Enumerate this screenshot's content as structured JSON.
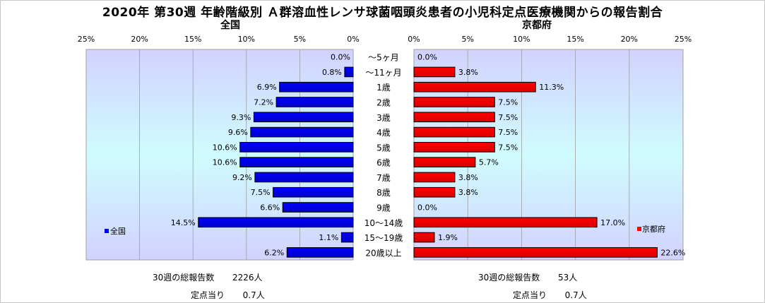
{
  "page": {
    "title": "2020年 第30週 年齢階級別 Ａ群溶血性レンサ球菌咽頭炎患者の小児科定点医療機関からの報告割合"
  },
  "chart_data": [
    {
      "type": "bar",
      "orientation": "horizontal",
      "direction": "right-to-left",
      "title": "全国",
      "legend": "全国",
      "legend_position": "left",
      "color": "#0000ff",
      "xlim": [
        0,
        25
      ],
      "xticks": [
        "25%",
        "20%",
        "15%",
        "10%",
        "5%",
        "0%"
      ],
      "categories": [
        "～5ヶ月",
        "～11ヶ月",
        "1歳",
        "2歳",
        "3歳",
        "4歳",
        "5歳",
        "6歳",
        "7歳",
        "8歳",
        "9歳",
        "10～14歳",
        "15～19歳",
        "20歳以上"
      ],
      "values": [
        0.0,
        0.8,
        6.9,
        7.2,
        9.3,
        9.6,
        10.6,
        10.6,
        9.2,
        7.5,
        6.6,
        14.5,
        1.1,
        6.2
      ],
      "data_labels": [
        "0.0%",
        "0.8%",
        "6.9%",
        "7.2%",
        "9.3%",
        "9.6%",
        "10.6%",
        "10.6%",
        "9.2%",
        "7.5%",
        "6.6%",
        "14.5%",
        "1.1%",
        "6.2%"
      ],
      "grid": true
    },
    {
      "type": "bar",
      "orientation": "horizontal",
      "direction": "left-to-right",
      "title": "京都府",
      "legend": "京都府",
      "legend_position": "right",
      "color": "#ff0000",
      "xlim": [
        0,
        25
      ],
      "xticks": [
        "0%",
        "5%",
        "10%",
        "15%",
        "20%",
        "25%"
      ],
      "categories": [
        "～5ヶ月",
        "～11ヶ月",
        "1歳",
        "2歳",
        "3歳",
        "4歳",
        "5歳",
        "6歳",
        "7歳",
        "8歳",
        "9歳",
        "10～14歳",
        "15～19歳",
        "20歳以上"
      ],
      "values": [
        0.0,
        3.8,
        11.3,
        7.5,
        7.5,
        7.5,
        7.5,
        5.7,
        3.8,
        3.8,
        0.0,
        17.0,
        1.9,
        22.6
      ],
      "data_labels": [
        "0.0%",
        "3.8%",
        "11.3%",
        "7.5%",
        "7.5%",
        "7.5%",
        "7.5%",
        "5.7%",
        "3.8%",
        "3.8%",
        "0.0%",
        "17.0%",
        "1.9%",
        "22.6%"
      ],
      "grid": true
    }
  ],
  "footer": {
    "left": {
      "total_label": "30週の総報告数",
      "total_value": "2226人",
      "per_label": "定点当り",
      "per_value": "0.7人"
    },
    "right": {
      "total_label": "30週の総報告数",
      "total_value": "53人",
      "per_label": "定点当り",
      "per_value": "0.7人"
    }
  }
}
